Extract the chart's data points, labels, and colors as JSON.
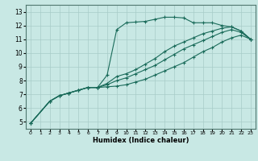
{
  "xlabel": "Humidex (Indice chaleur)",
  "ylabel": "",
  "xlim": [
    -0.5,
    23.5
  ],
  "ylim": [
    4.5,
    13.5
  ],
  "xticks": [
    0,
    1,
    2,
    3,
    4,
    5,
    6,
    7,
    8,
    9,
    10,
    11,
    12,
    13,
    14,
    15,
    16,
    17,
    18,
    19,
    20,
    21,
    22,
    23
  ],
  "yticks": [
    5,
    6,
    7,
    8,
    9,
    10,
    11,
    12,
    13
  ],
  "bg_color": "#c8e8e4",
  "line_color": "#1a6b5a",
  "grid_color": "#a8ccc8",
  "lines": [
    {
      "x": [
        0,
        2,
        3,
        4,
        5,
        6,
        7,
        8,
        9,
        10,
        11,
        12,
        13,
        14,
        15,
        16,
        17,
        18,
        19,
        20,
        21,
        22,
        23
      ],
      "y": [
        4.9,
        6.5,
        6.9,
        7.1,
        7.3,
        7.5,
        7.5,
        7.55,
        7.6,
        7.7,
        7.9,
        8.1,
        8.4,
        8.7,
        9.0,
        9.3,
        9.7,
        10.1,
        10.4,
        10.8,
        11.1,
        11.3,
        11.0
      ]
    },
    {
      "x": [
        0,
        2,
        3,
        4,
        5,
        6,
        7,
        8,
        9,
        10,
        11,
        12,
        13,
        14,
        15,
        16,
        17,
        18,
        19,
        20,
        21,
        22,
        23
      ],
      "y": [
        4.9,
        6.5,
        6.9,
        7.1,
        7.3,
        7.5,
        7.5,
        7.7,
        8.0,
        8.2,
        8.5,
        8.8,
        9.1,
        9.5,
        9.9,
        10.3,
        10.6,
        10.9,
        11.2,
        11.5,
        11.7,
        11.5,
        11.0
      ]
    },
    {
      "x": [
        0,
        2,
        3,
        4,
        5,
        6,
        7,
        8,
        9,
        10,
        11,
        12,
        13,
        14,
        15,
        16,
        17,
        18,
        19,
        20,
        21,
        22,
        23
      ],
      "y": [
        4.9,
        6.5,
        6.9,
        7.1,
        7.3,
        7.5,
        7.5,
        7.8,
        8.3,
        8.5,
        8.8,
        9.2,
        9.6,
        10.1,
        10.5,
        10.8,
        11.1,
        11.4,
        11.6,
        11.8,
        11.9,
        11.6,
        11.0
      ]
    },
    {
      "x": [
        0,
        2,
        3,
        4,
        5,
        6,
        7,
        8,
        9,
        10,
        11,
        12,
        13,
        14,
        15,
        16,
        17,
        18,
        19,
        20,
        21,
        22,
        23
      ],
      "y": [
        4.9,
        6.5,
        6.9,
        7.1,
        7.3,
        7.5,
        7.5,
        8.4,
        11.7,
        12.2,
        12.25,
        12.3,
        12.45,
        12.6,
        12.6,
        12.55,
        12.2,
        12.2,
        12.2,
        12.0,
        11.9,
        11.6,
        11.0
      ]
    }
  ]
}
